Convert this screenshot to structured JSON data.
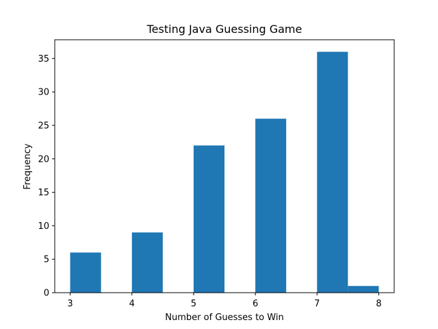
{
  "chart_data": {
    "type": "bar",
    "title": "Testing Java Guessing Game",
    "xlabel": "Number of Guesses to Win",
    "ylabel": "Frequency",
    "bins": [
      {
        "start": 3.0,
        "end": 3.5,
        "value": 6
      },
      {
        "start": 3.5,
        "end": 4.0,
        "value": 0
      },
      {
        "start": 4.0,
        "end": 4.5,
        "value": 9
      },
      {
        "start": 4.5,
        "end": 5.0,
        "value": 0
      },
      {
        "start": 5.0,
        "end": 5.5,
        "value": 22
      },
      {
        "start": 5.5,
        "end": 6.0,
        "value": 0
      },
      {
        "start": 6.0,
        "end": 6.5,
        "value": 26
      },
      {
        "start": 6.5,
        "end": 7.0,
        "value": 0
      },
      {
        "start": 7.0,
        "end": 7.5,
        "value": 36
      },
      {
        "start": 7.5,
        "end": 8.0,
        "value": 1
      }
    ],
    "xlim": [
      2.75,
      8.25
    ],
    "ylim": [
      0,
      37.8
    ],
    "xticks": [
      3,
      4,
      5,
      6,
      7,
      8
    ],
    "yticks": [
      0,
      5,
      10,
      15,
      20,
      25,
      30,
      35
    ],
    "bar_color": "#1f77b4",
    "grid": false
  }
}
